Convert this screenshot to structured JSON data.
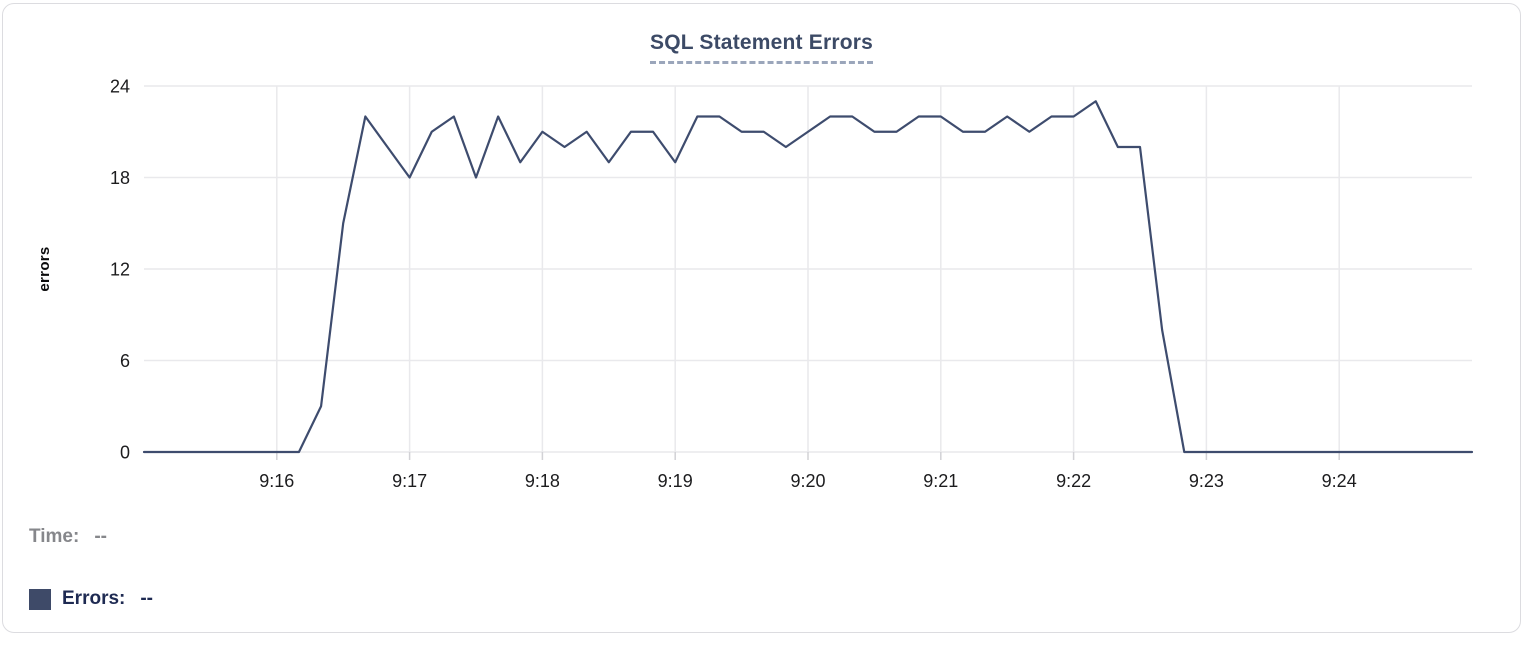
{
  "chart": {
    "title": "SQL Statement Errors"
  },
  "tooltip": {
    "time_label": "Time:",
    "time_value": "--",
    "errors_label": "Errors:",
    "errors_value": "--"
  },
  "colors": {
    "title": "#3c4a66",
    "title_underline": "#9ba6bb",
    "line": "#3e4c6e",
    "swatch": "#3e4a68",
    "time_label_gray": "#86878b",
    "errors_label_navy": "#1e2a52",
    "gridline": "#e9e9ec",
    "axis_tick": "#d2d2d6",
    "axis_text": "#1c1c1e"
  },
  "chart_data": {
    "type": "line",
    "title": "SQL Statement Errors",
    "xlabel": "",
    "ylabel": "errors",
    "ylim": [
      0,
      24
    ],
    "yticks": [
      0,
      6,
      12,
      18,
      24
    ],
    "xtick_labels": [
      "9:16",
      "9:17",
      "9:18",
      "9:19",
      "9:20",
      "9:21",
      "9:22",
      "9:23",
      "9:24"
    ],
    "grid": true,
    "legend_position": "bottom-left",
    "interval_seconds": 10,
    "series": [
      {
        "name": "Errors",
        "color": "#3e4a68",
        "line_color": "#3e4c6e",
        "x": [
          "9:15:00",
          "9:15:10",
          "9:15:20",
          "9:15:30",
          "9:15:40",
          "9:15:50",
          "9:16:00",
          "9:16:10",
          "9:16:20",
          "9:16:30",
          "9:16:40",
          "9:16:50",
          "9:17:00",
          "9:17:10",
          "9:17:20",
          "9:17:30",
          "9:17:40",
          "9:17:50",
          "9:18:00",
          "9:18:10",
          "9:18:20",
          "9:18:30",
          "9:18:40",
          "9:18:50",
          "9:19:00",
          "9:19:10",
          "9:19:20",
          "9:19:30",
          "9:19:40",
          "9:19:50",
          "9:20:00",
          "9:20:10",
          "9:20:20",
          "9:20:30",
          "9:20:40",
          "9:20:50",
          "9:21:00",
          "9:21:10",
          "9:21:20",
          "9:21:30",
          "9:21:40",
          "9:21:50",
          "9:22:00",
          "9:22:10",
          "9:22:20",
          "9:22:30",
          "9:22:40",
          "9:22:50",
          "9:23:00",
          "9:23:10",
          "9:23:20",
          "9:23:30",
          "9:23:40",
          "9:23:50",
          "9:24:00",
          "9:24:10",
          "9:24:20",
          "9:24:30",
          "9:24:40",
          "9:24:50",
          "9:25:00"
        ],
        "values": [
          0,
          0,
          0,
          0,
          0,
          0,
          0,
          0,
          3,
          15,
          22,
          20,
          18,
          21,
          22,
          18,
          22,
          19,
          21,
          20,
          21,
          19,
          21,
          21,
          19,
          22,
          22,
          21,
          21,
          20,
          21,
          22,
          22,
          21,
          21,
          22,
          22,
          21,
          21,
          22,
          21,
          22,
          22,
          23,
          20,
          20,
          8,
          0,
          0,
          0,
          0,
          0,
          0,
          0,
          0,
          0,
          0,
          0,
          0,
          0,
          0
        ]
      }
    ]
  }
}
